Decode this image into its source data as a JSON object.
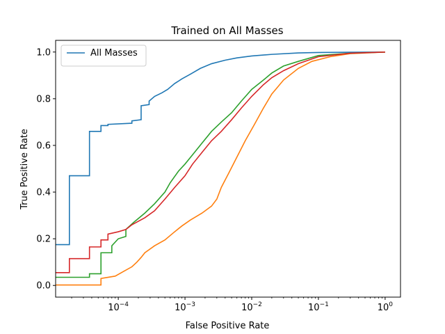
{
  "chart_data": {
    "type": "line",
    "title": "Trained on All Masses",
    "xlabel": "False Positive Rate",
    "ylabel": "True Positive Rate",
    "xscale": "log",
    "xlim": [
      1.15e-05,
      1.7
    ],
    "ylim": [
      -0.05,
      1.05
    ],
    "grid": false,
    "legend": {
      "placement": "top-left"
    },
    "x_ticks": [
      {
        "value": 0.0001,
        "base": "10",
        "exp": "−4"
      },
      {
        "value": 0.001,
        "base": "10",
        "exp": "−3"
      },
      {
        "value": 0.01,
        "base": "10",
        "exp": "−2"
      },
      {
        "value": 0.1,
        "base": "10",
        "exp": "−1"
      },
      {
        "value": 1,
        "base": "10",
        "exp": "0"
      }
    ],
    "y_ticks": [
      {
        "value": 0.0,
        "label": "0.0"
      },
      {
        "value": 0.2,
        "label": "0.2"
      },
      {
        "value": 0.4,
        "label": "0.4"
      },
      {
        "value": 0.6,
        "label": "0.6"
      },
      {
        "value": 0.8,
        "label": "0.8"
      },
      {
        "value": 1.0,
        "label": "1.0"
      }
    ],
    "series": [
      {
        "name": "All Masses",
        "color": "#1f77b4",
        "points": [
          [
            1.15e-05,
            0.175
          ],
          [
            1.85e-05,
            0.175
          ],
          [
            1.85e-05,
            0.47
          ],
          [
            3.7e-05,
            0.47
          ],
          [
            3.7e-05,
            0.66
          ],
          [
            5.5e-05,
            0.66
          ],
          [
            5.5e-05,
            0.685
          ],
          [
            7e-05,
            0.685
          ],
          [
            7e-05,
            0.69
          ],
          [
            0.00016,
            0.695
          ],
          [
            0.00016,
            0.705
          ],
          [
            0.00022,
            0.71
          ],
          [
            0.00022,
            0.77
          ],
          [
            0.00029,
            0.775
          ],
          [
            0.00029,
            0.79
          ],
          [
            0.00035,
            0.81
          ],
          [
            0.00045,
            0.825
          ],
          [
            0.00055,
            0.84
          ],
          [
            0.0007,
            0.865
          ],
          [
            0.0009,
            0.885
          ],
          [
            0.0012,
            0.905
          ],
          [
            0.0017,
            0.93
          ],
          [
            0.0025,
            0.95
          ],
          [
            0.004,
            0.965
          ],
          [
            0.006,
            0.975
          ],
          [
            0.01,
            0.983
          ],
          [
            0.02,
            0.99
          ],
          [
            0.05,
            0.996
          ],
          [
            0.1,
            0.998
          ],
          [
            0.3,
            0.999
          ],
          [
            1,
            1.0
          ]
        ]
      },
      {
        "color": "#ff7f0e",
        "points": [
          [
            1.15e-05,
            0.002
          ],
          [
            5.5e-05,
            0.002
          ],
          [
            5.5e-05,
            0.03
          ],
          [
            9e-05,
            0.04
          ],
          [
            0.00012,
            0.06
          ],
          [
            0.00016,
            0.08
          ],
          [
            0.00019,
            0.1
          ],
          [
            0.00022,
            0.12
          ],
          [
            0.00025,
            0.14
          ],
          [
            0.00035,
            0.17
          ],
          [
            0.0005,
            0.195
          ],
          [
            0.0007,
            0.23
          ],
          [
            0.0009,
            0.255
          ],
          [
            0.0012,
            0.28
          ],
          [
            0.0018,
            0.31
          ],
          [
            0.0025,
            0.34
          ],
          [
            0.003,
            0.37
          ],
          [
            0.0035,
            0.42
          ],
          [
            0.0045,
            0.48
          ],
          [
            0.006,
            0.55
          ],
          [
            0.008,
            0.62
          ],
          [
            0.011,
            0.69
          ],
          [
            0.015,
            0.76
          ],
          [
            0.02,
            0.82
          ],
          [
            0.03,
            0.88
          ],
          [
            0.05,
            0.93
          ],
          [
            0.08,
            0.96
          ],
          [
            0.15,
            0.98
          ],
          [
            0.3,
            0.993
          ],
          [
            1,
            1.0
          ]
        ]
      },
      {
        "color": "#2ca02c",
        "points": [
          [
            1.15e-05,
            0.035
          ],
          [
            3.7e-05,
            0.035
          ],
          [
            3.7e-05,
            0.05
          ],
          [
            5.5e-05,
            0.05
          ],
          [
            5.5e-05,
            0.14
          ],
          [
            8e-05,
            0.14
          ],
          [
            8e-05,
            0.17
          ],
          [
            0.0001,
            0.2
          ],
          [
            0.00013,
            0.21
          ],
          [
            0.00013,
            0.24
          ],
          [
            0.00017,
            0.27
          ],
          [
            0.00025,
            0.31
          ],
          [
            0.00035,
            0.35
          ],
          [
            0.0005,
            0.4
          ],
          [
            0.0006,
            0.44
          ],
          [
            0.0008,
            0.49
          ],
          [
            0.001,
            0.52
          ],
          [
            0.0013,
            0.56
          ],
          [
            0.0018,
            0.61
          ],
          [
            0.0025,
            0.66
          ],
          [
            0.0035,
            0.7
          ],
          [
            0.005,
            0.74
          ],
          [
            0.007,
            0.79
          ],
          [
            0.01,
            0.84
          ],
          [
            0.015,
            0.88
          ],
          [
            0.02,
            0.91
          ],
          [
            0.03,
            0.94
          ],
          [
            0.05,
            0.96
          ],
          [
            0.1,
            0.985
          ],
          [
            0.3,
            0.995
          ],
          [
            1,
            1.0
          ]
        ]
      },
      {
        "color": "#d62728",
        "points": [
          [
            1.15e-05,
            0.055
          ],
          [
            1.85e-05,
            0.055
          ],
          [
            1.85e-05,
            0.115
          ],
          [
            3.7e-05,
            0.115
          ],
          [
            3.7e-05,
            0.165
          ],
          [
            5.5e-05,
            0.165
          ],
          [
            5.5e-05,
            0.195
          ],
          [
            7e-05,
            0.195
          ],
          [
            7e-05,
            0.22
          ],
          [
            0.0001,
            0.23
          ],
          [
            0.00013,
            0.24
          ],
          [
            0.00016,
            0.26
          ],
          [
            0.00025,
            0.29
          ],
          [
            0.00035,
            0.32
          ],
          [
            0.0005,
            0.37
          ],
          [
            0.0007,
            0.42
          ],
          [
            0.001,
            0.47
          ],
          [
            0.0013,
            0.52
          ],
          [
            0.0018,
            0.57
          ],
          [
            0.0025,
            0.62
          ],
          [
            0.0035,
            0.66
          ],
          [
            0.005,
            0.71
          ],
          [
            0.007,
            0.76
          ],
          [
            0.01,
            0.81
          ],
          [
            0.015,
            0.86
          ],
          [
            0.02,
            0.89
          ],
          [
            0.03,
            0.92
          ],
          [
            0.05,
            0.95
          ],
          [
            0.1,
            0.98
          ],
          [
            0.3,
            0.995
          ],
          [
            1,
            1.0
          ]
        ]
      }
    ]
  }
}
